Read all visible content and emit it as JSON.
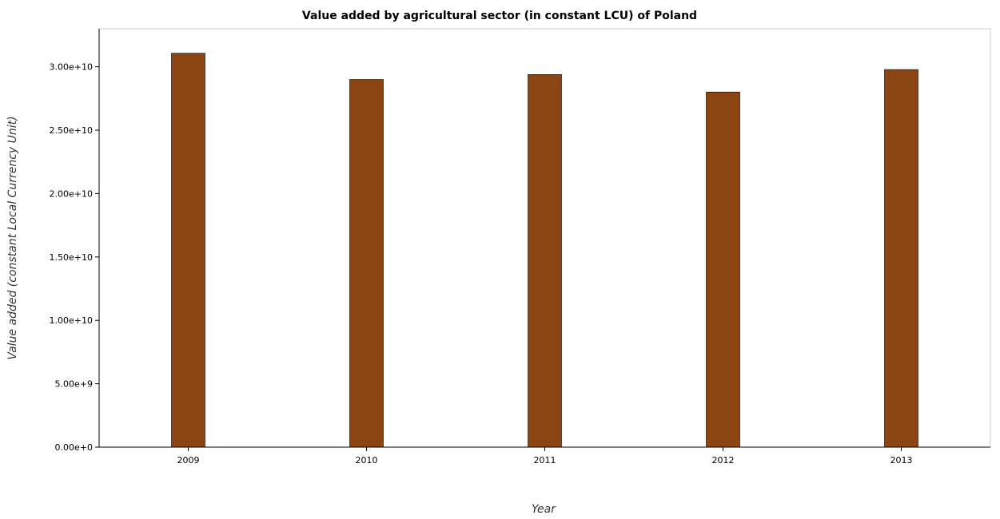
{
  "chart_data": {
    "type": "bar",
    "title": "Value added by agricultural sector (in constant LCU) of Poland",
    "xlabel": "Year",
    "ylabel": "Value added (constant Local Currency Unit)",
    "categories": [
      "2009",
      "2010",
      "2011",
      "2012",
      "2013"
    ],
    "values": [
      31070000000,
      29000000000,
      29390000000,
      28010000000,
      29780000000
    ],
    "ylim": [
      0,
      33000000000
    ],
    "yticks": [
      0,
      5000000000,
      10000000000,
      15000000000,
      20000000000,
      25000000000,
      30000000000
    ],
    "ytick_labels": [
      "0.00e+0",
      "5.00e+9",
      "1.00e+10",
      "1.50e+10",
      "2.00e+10",
      "2.50e+10",
      "3.00e+10"
    ],
    "grid": false,
    "bar_color": "#8b4513"
  }
}
